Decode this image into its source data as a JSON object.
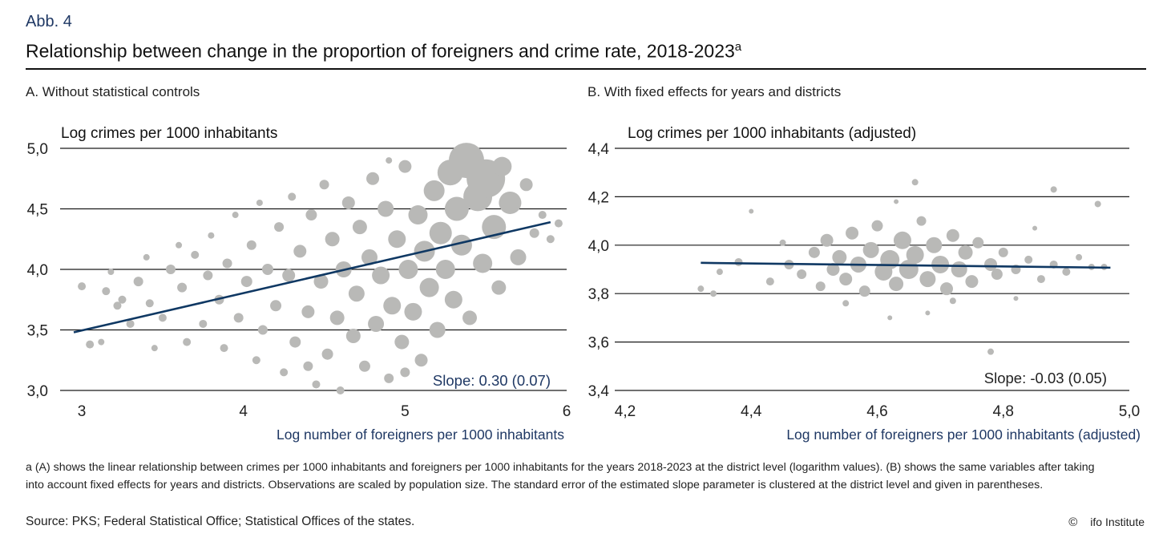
{
  "figure": {
    "label": "Abb. 4",
    "title": "Relationship between change in the proportion of foreigners and crime rate, 2018-2023",
    "title_superscript": "a",
    "footnote": "a (A) shows the linear relationship between crimes per 1000 inhabitants and foreigners per 1000 inhabitants for the years 2018-2023 at the district level (logarithm values). (B) shows the same variables after taking into account fixed effects for years and districts. Observations are scaled by population size. The standard error of the estimated slope parameter is clustered at the district level and given in parentheses.",
    "source": "Source: PKS; Federal Statistical Office; Statistical Offices of the states.",
    "copyright_symbol": "©",
    "copyright": "ifo Institute"
  },
  "colors": {
    "points": "#b9b9b7",
    "fit_line": "#0f3863",
    "grid": "#1a1a1a",
    "label": "#1f3864"
  },
  "chart_data": [
    {
      "type": "scatter",
      "panel": "A",
      "panel_title": "A. Without statistical controls",
      "ylabel": "Log crimes per 1000 inhabitants",
      "xlabel": "Log number of foreigners per 1000 inhabitants",
      "xlim": [
        2.95,
        6.0
      ],
      "ylim": [
        3.0,
        5.0
      ],
      "xticks": [
        3,
        4,
        5,
        6
      ],
      "xtick_labels": [
        "3",
        "4",
        "5",
        "6"
      ],
      "yticks": [
        3.0,
        3.5,
        4.0,
        4.5,
        5.0
      ],
      "ytick_labels": [
        "3,0",
        "3,5",
        "4,0",
        "4,5",
        "5,0"
      ],
      "fit_line": {
        "x": [
          2.95,
          5.9
        ],
        "y": [
          3.48,
          4.39
        ]
      },
      "annotation": "Slope: 0.30 (0.07)",
      "points": [
        [
          3.0,
          3.86,
          5
        ],
        [
          3.05,
          3.38,
          5
        ],
        [
          3.12,
          3.4,
          4
        ],
        [
          3.15,
          3.82,
          5
        ],
        [
          3.18,
          3.98,
          4
        ],
        [
          3.22,
          3.7,
          5
        ],
        [
          3.3,
          3.55,
          5
        ],
        [
          3.35,
          3.9,
          6
        ],
        [
          3.4,
          4.1,
          4
        ],
        [
          3.42,
          3.72,
          5
        ],
        [
          3.5,
          3.6,
          5
        ],
        [
          3.55,
          4.0,
          6
        ],
        [
          3.6,
          4.2,
          4
        ],
        [
          3.62,
          3.85,
          6
        ],
        [
          3.65,
          3.4,
          5
        ],
        [
          3.7,
          4.12,
          5
        ],
        [
          3.75,
          3.55,
          5
        ],
        [
          3.78,
          3.95,
          6
        ],
        [
          3.8,
          4.28,
          4
        ],
        [
          3.85,
          3.75,
          6
        ],
        [
          3.88,
          3.35,
          5
        ],
        [
          3.9,
          4.05,
          6
        ],
        [
          3.95,
          4.45,
          4
        ],
        [
          3.97,
          3.6,
          6
        ],
        [
          4.02,
          3.9,
          7
        ],
        [
          4.05,
          4.2,
          6
        ],
        [
          4.08,
          3.25,
          5
        ],
        [
          4.1,
          4.55,
          4
        ],
        [
          4.12,
          3.5,
          6
        ],
        [
          4.15,
          4.0,
          7
        ],
        [
          4.2,
          3.7,
          7
        ],
        [
          4.22,
          4.35,
          6
        ],
        [
          4.25,
          3.15,
          5
        ],
        [
          4.28,
          3.95,
          8
        ],
        [
          4.3,
          4.6,
          5
        ],
        [
          4.32,
          3.4,
          7
        ],
        [
          4.35,
          4.15,
          8
        ],
        [
          4.4,
          3.65,
          8
        ],
        [
          4.42,
          4.45,
          7
        ],
        [
          4.45,
          3.05,
          5
        ],
        [
          4.48,
          3.9,
          9
        ],
        [
          4.5,
          4.7,
          6
        ],
        [
          4.52,
          3.3,
          7
        ],
        [
          4.55,
          4.25,
          9
        ],
        [
          4.58,
          3.6,
          9
        ],
        [
          4.6,
          3.0,
          5
        ],
        [
          4.62,
          4.0,
          10
        ],
        [
          4.65,
          4.55,
          8
        ],
        [
          4.68,
          3.45,
          9
        ],
        [
          4.7,
          3.8,
          10
        ],
        [
          4.72,
          4.35,
          9
        ],
        [
          4.75,
          3.2,
          7
        ],
        [
          4.78,
          4.1,
          10
        ],
        [
          4.8,
          4.75,
          8
        ],
        [
          4.82,
          3.55,
          10
        ],
        [
          4.85,
          3.95,
          11
        ],
        [
          4.88,
          4.5,
          10
        ],
        [
          4.9,
          3.1,
          6
        ],
        [
          4.92,
          3.7,
          11
        ],
        [
          4.95,
          4.25,
          11
        ],
        [
          4.98,
          3.4,
          9
        ],
        [
          5.0,
          4.85,
          8
        ],
        [
          5.02,
          4.0,
          12
        ],
        [
          5.05,
          3.65,
          11
        ],
        [
          5.08,
          4.45,
          12
        ],
        [
          5.1,
          3.25,
          8
        ],
        [
          5.12,
          4.15,
          13
        ],
        [
          5.15,
          3.85,
          12
        ],
        [
          5.18,
          4.65,
          13
        ],
        [
          5.2,
          3.5,
          10
        ],
        [
          5.22,
          4.3,
          14
        ],
        [
          5.25,
          4.0,
          12
        ],
        [
          5.28,
          4.8,
          16
        ],
        [
          5.3,
          3.75,
          11
        ],
        [
          5.32,
          4.5,
          15
        ],
        [
          5.35,
          4.2,
          13
        ],
        [
          5.38,
          4.9,
          22
        ],
        [
          5.4,
          3.6,
          9
        ],
        [
          5.45,
          4.6,
          18
        ],
        [
          5.48,
          4.05,
          12
        ],
        [
          5.5,
          4.75,
          24
        ],
        [
          5.55,
          4.35,
          15
        ],
        [
          5.58,
          3.85,
          9
        ],
        [
          5.6,
          4.85,
          12
        ],
        [
          5.65,
          4.55,
          14
        ],
        [
          5.7,
          4.1,
          10
        ],
        [
          5.75,
          4.7,
          8
        ],
        [
          5.8,
          4.3,
          6
        ],
        [
          5.85,
          4.45,
          5
        ],
        [
          5.9,
          4.25,
          5
        ],
        [
          5.95,
          4.38,
          5
        ],
        [
          5.0,
          3.15,
          6
        ],
        [
          4.4,
          3.2,
          6
        ],
        [
          3.45,
          3.35,
          4
        ],
        [
          3.25,
          3.75,
          5
        ],
        [
          4.9,
          4.9,
          4
        ]
      ]
    },
    {
      "type": "scatter",
      "panel": "B",
      "panel_title": "B. With fixed effects for years and districts",
      "ylabel": "Log crimes per 1000 inhabitants (adjusted)",
      "xlabel": "Log number of foreigners per 1000 inhabitants (adjusted)",
      "xlim": [
        4.2,
        5.0
      ],
      "ylim": [
        3.4,
        4.4
      ],
      "xticks": [
        4.2,
        4.4,
        4.6,
        4.8,
        5.0
      ],
      "xtick_labels": [
        "4,2",
        "4,4",
        "4,6",
        "4,8",
        "5,0"
      ],
      "yticks": [
        3.4,
        3.6,
        3.8,
        4.0,
        4.2,
        4.4
      ],
      "ytick_labels": [
        "3,4",
        "3,6",
        "3,8",
        "4,0",
        "4,2",
        "4,4"
      ],
      "fit_line": {
        "x": [
          4.32,
          4.97
        ],
        "y": [
          3.927,
          3.907
        ]
      },
      "annotation": "Slope: -0.03 (0.05)",
      "points": [
        [
          4.32,
          3.82,
          4
        ],
        [
          4.34,
          3.8,
          4
        ],
        [
          4.35,
          3.89,
          4
        ],
        [
          4.38,
          3.93,
          5
        ],
        [
          4.43,
          3.85,
          5
        ],
        [
          4.45,
          4.01,
          4
        ],
        [
          4.46,
          3.92,
          6
        ],
        [
          4.48,
          3.88,
          6
        ],
        [
          4.5,
          3.97,
          7
        ],
        [
          4.51,
          3.83,
          6
        ],
        [
          4.52,
          4.02,
          8
        ],
        [
          4.53,
          3.9,
          8
        ],
        [
          4.54,
          3.95,
          9
        ],
        [
          4.55,
          3.86,
          8
        ],
        [
          4.56,
          4.05,
          8
        ],
        [
          4.57,
          3.92,
          10
        ],
        [
          4.58,
          3.81,
          7
        ],
        [
          4.59,
          3.98,
          10
        ],
        [
          4.6,
          4.08,
          7
        ],
        [
          4.61,
          3.89,
          11
        ],
        [
          4.62,
          3.94,
          12
        ],
        [
          4.63,
          3.84,
          9
        ],
        [
          4.64,
          4.02,
          11
        ],
        [
          4.65,
          3.9,
          12
        ],
        [
          4.66,
          3.96,
          11
        ],
        [
          4.67,
          4.1,
          6
        ],
        [
          4.68,
          3.86,
          10
        ],
        [
          4.69,
          4.0,
          10
        ],
        [
          4.7,
          3.92,
          11
        ],
        [
          4.71,
          3.82,
          8
        ],
        [
          4.72,
          4.04,
          8
        ],
        [
          4.73,
          3.9,
          10
        ],
        [
          4.74,
          3.97,
          9
        ],
        [
          4.75,
          3.85,
          8
        ],
        [
          4.76,
          4.01,
          7
        ],
        [
          4.78,
          3.92,
          8
        ],
        [
          4.79,
          3.88,
          7
        ],
        [
          4.8,
          3.97,
          6
        ],
        [
          4.82,
          3.9,
          6
        ],
        [
          4.84,
          3.94,
          5
        ],
        [
          4.86,
          3.86,
          5
        ],
        [
          4.88,
          3.92,
          5
        ],
        [
          4.9,
          3.89,
          5
        ],
        [
          4.92,
          3.95,
          4
        ],
        [
          4.94,
          3.91,
          4
        ],
        [
          4.96,
          3.91,
          4
        ],
        [
          4.66,
          4.26,
          4
        ],
        [
          4.88,
          4.23,
          4
        ],
        [
          4.95,
          4.17,
          4
        ],
        [
          4.78,
          3.56,
          4
        ],
        [
          4.62,
          3.7,
          3
        ],
        [
          4.68,
          3.72,
          3
        ],
        [
          4.4,
          4.14,
          3
        ],
        [
          4.63,
          4.18,
          3
        ],
        [
          4.85,
          4.07,
          3
        ],
        [
          4.55,
          3.76,
          4
        ],
        [
          4.72,
          3.77,
          4
        ],
        [
          4.82,
          3.78,
          3
        ]
      ]
    }
  ]
}
